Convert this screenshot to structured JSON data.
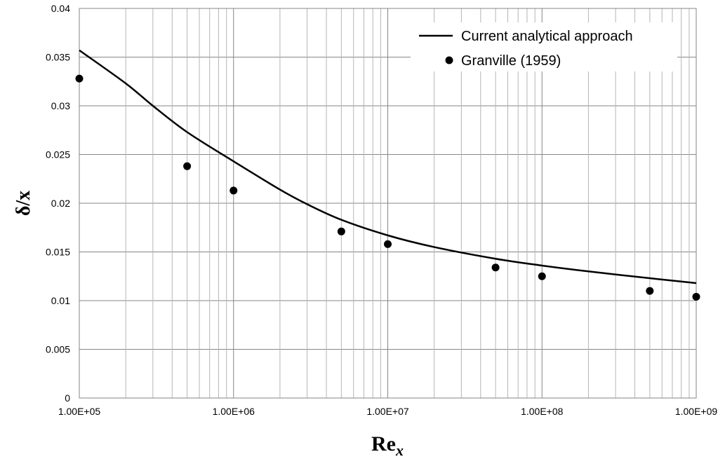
{
  "chart_data": {
    "type": "line",
    "xlabel": "Re",
    "xlabel_sub": "x",
    "ylabel": "δ/x",
    "x_scale": "log",
    "xlim": [
      100000,
      1000000000
    ],
    "ylim": [
      0,
      0.04
    ],
    "y_ticks": [
      0,
      0.005,
      0.01,
      0.015,
      0.02,
      0.025,
      0.03,
      0.035,
      0.04
    ],
    "y_tick_labels": [
      "0",
      "0.005",
      "0.01",
      "0.015",
      "0.02",
      "0.025",
      "0.03",
      "0.035",
      "0.04"
    ],
    "x_ticks": [
      100000,
      1000000,
      10000000,
      100000000,
      1000000000
    ],
    "x_tick_labels": [
      "1.00E+05",
      "1.00E+06",
      "1.00E+07",
      "1.00E+08",
      "1.00E+09"
    ],
    "grid": true,
    "legend_position": "top-right",
    "series": [
      {
        "name": "Current analytical approach",
        "style": "line",
        "color": "#000000",
        "x": [
          100000,
          200000,
          300000,
          500000,
          1000000,
          2000000,
          3000000,
          5000000,
          10000000,
          20000000,
          50000000,
          100000000,
          200000000,
          500000000,
          1000000000
        ],
        "y": [
          0.0357,
          0.0323,
          0.03,
          0.0273,
          0.0243,
          0.0214,
          0.0199,
          0.0183,
          0.0167,
          0.0155,
          0.0143,
          0.0136,
          0.013,
          0.0123,
          0.0118
        ]
      },
      {
        "name": "Granville (1959)",
        "style": "marker",
        "color": "#000000",
        "x": [
          100000,
          500000,
          1000000,
          5000000,
          10000000,
          50000000,
          100000000,
          500000000,
          1000000000
        ],
        "y": [
          0.0328,
          0.0238,
          0.0213,
          0.0171,
          0.0158,
          0.0134,
          0.0125,
          0.011,
          0.0104
        ]
      }
    ]
  }
}
